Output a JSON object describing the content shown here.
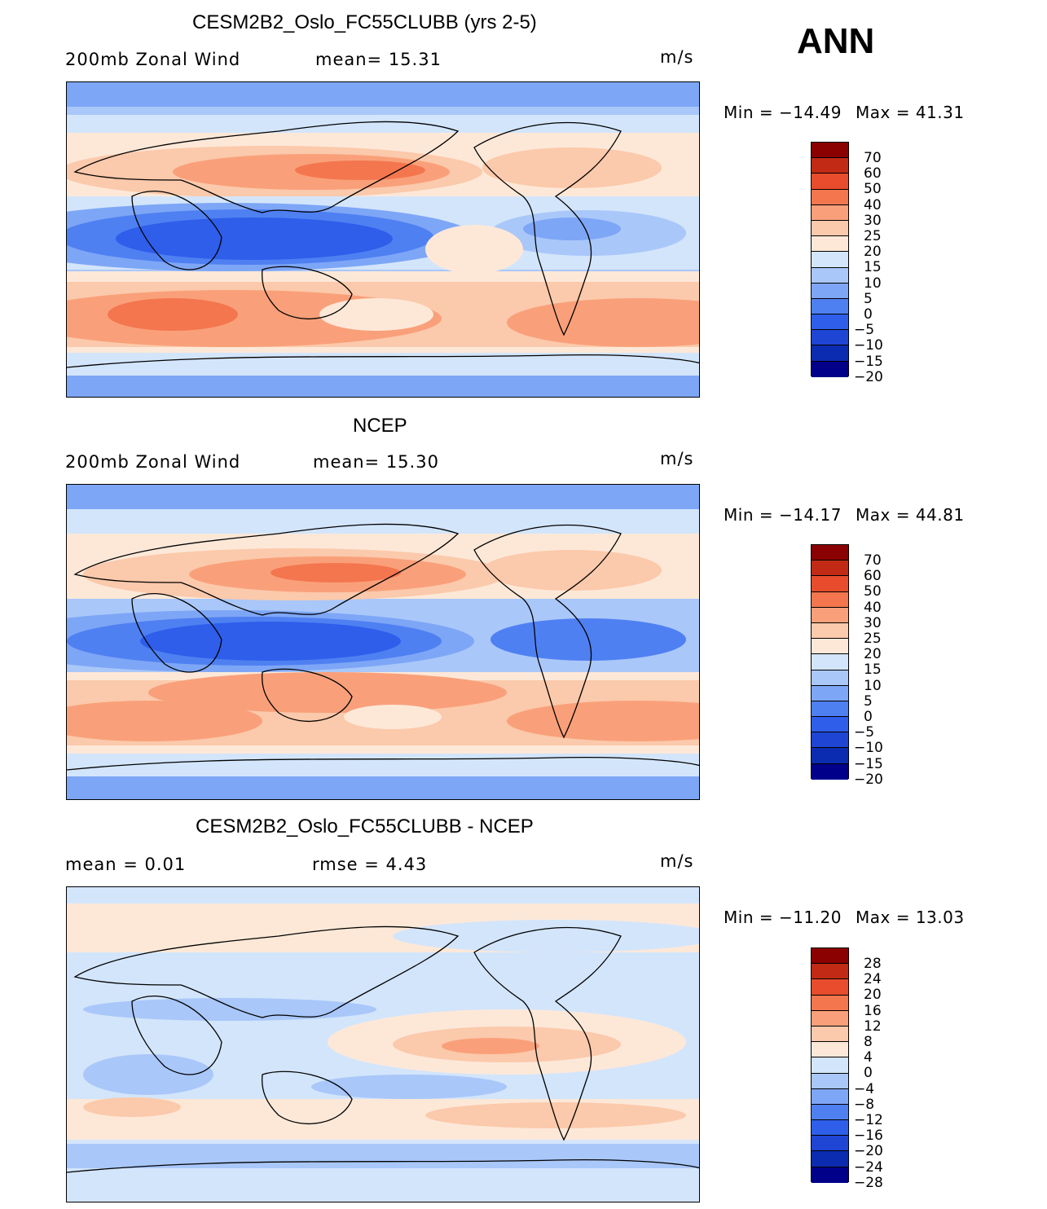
{
  "season": "ANN",
  "colors": {
    "abs_scale": [
      "#00008b",
      "#0b2bb0",
      "#1f45d4",
      "#2e5eea",
      "#4f80f2",
      "#7ea6f6",
      "#a9c7f9",
      "#d3e5fb",
      "#fde8d8",
      "#fbc9ab",
      "#f9a07a",
      "#f4764e",
      "#e84c2c",
      "#c22a15",
      "#8b0000"
    ],
    "diff_scale": [
      "#00008b",
      "#0b2bb0",
      "#1f45d4",
      "#2e5eea",
      "#4f80f2",
      "#7ea6f6",
      "#a9c7f9",
      "#d3e5fb",
      "#fde8d8",
      "#fbc9ab",
      "#f9a07a",
      "#f4764e",
      "#e84c2c",
      "#c22a15",
      "#8b0000"
    ]
  },
  "panels": [
    {
      "title": "CESM2B2_Oslo_FC55CLUBB (yrs 2-5)",
      "left_text": "200mb  Zonal  Wind",
      "mid_text": "mean=   15.31",
      "units": "m/s",
      "min_text": "Min  =  −14.49",
      "max_text": "Max  =    41.31",
      "colorbar_labels": [
        "70",
        "60",
        "50",
        "40",
        "30",
        "25",
        "20",
        "15",
        "10",
        "5",
        "0",
        "−5",
        "−10",
        "−15",
        "−20"
      ],
      "map_label": "model-map"
    },
    {
      "title": "NCEP",
      "left_text": "200mb  Zonal  Wind",
      "mid_text": "mean=   15.30",
      "units": "m/s",
      "min_text": "Min  =  −14.17",
      "max_text": "Max  =    44.81",
      "colorbar_labels": [
        "70",
        "60",
        "50",
        "40",
        "30",
        "25",
        "20",
        "15",
        "10",
        "5",
        "0",
        "−5",
        "−10",
        "−15",
        "−20"
      ],
      "map_label": "obs-map"
    },
    {
      "title": "CESM2B2_Oslo_FC55CLUBB - NCEP",
      "left_text": "mean  =      0.01",
      "mid_text": "rmse  =      4.43",
      "units": "m/s",
      "min_text": "Min  =  −11.20",
      "max_text": "Max  =    13.03",
      "colorbar_labels": [
        "28",
        "24",
        "20",
        "16",
        "12",
        "8",
        "4",
        "0",
        "−4",
        "−8",
        "−12",
        "−16",
        "−20",
        "−24",
        "−28"
      ],
      "map_label": "diff-map"
    }
  ],
  "chart_data": [
    {
      "type": "heatmap",
      "title": "CESM2B2_Oslo_FC55CLUBB (yrs 2-5)",
      "variable": "200mb Zonal Wind",
      "units": "m/s",
      "mean": 15.31,
      "min": -14.49,
      "max": 41.31,
      "contour_levels": [
        -20,
        -15,
        -10,
        -5,
        0,
        5,
        10,
        15,
        20,
        25,
        30,
        40,
        50,
        60,
        70
      ]
    },
    {
      "type": "heatmap",
      "title": "NCEP",
      "variable": "200mb Zonal Wind",
      "units": "m/s",
      "mean": 15.3,
      "min": -14.17,
      "max": 44.81,
      "contour_levels": [
        -20,
        -15,
        -10,
        -5,
        0,
        5,
        10,
        15,
        20,
        25,
        30,
        40,
        50,
        60,
        70
      ]
    },
    {
      "type": "heatmap",
      "title": "CESM2B2_Oslo_FC55CLUBB - NCEP",
      "units": "m/s",
      "mean": 0.01,
      "rmse": 4.43,
      "min": -11.2,
      "max": 13.03,
      "contour_levels": [
        -28,
        -24,
        -20,
        -16,
        -12,
        -8,
        -4,
        0,
        4,
        8,
        12,
        16,
        20,
        24,
        28
      ]
    }
  ]
}
